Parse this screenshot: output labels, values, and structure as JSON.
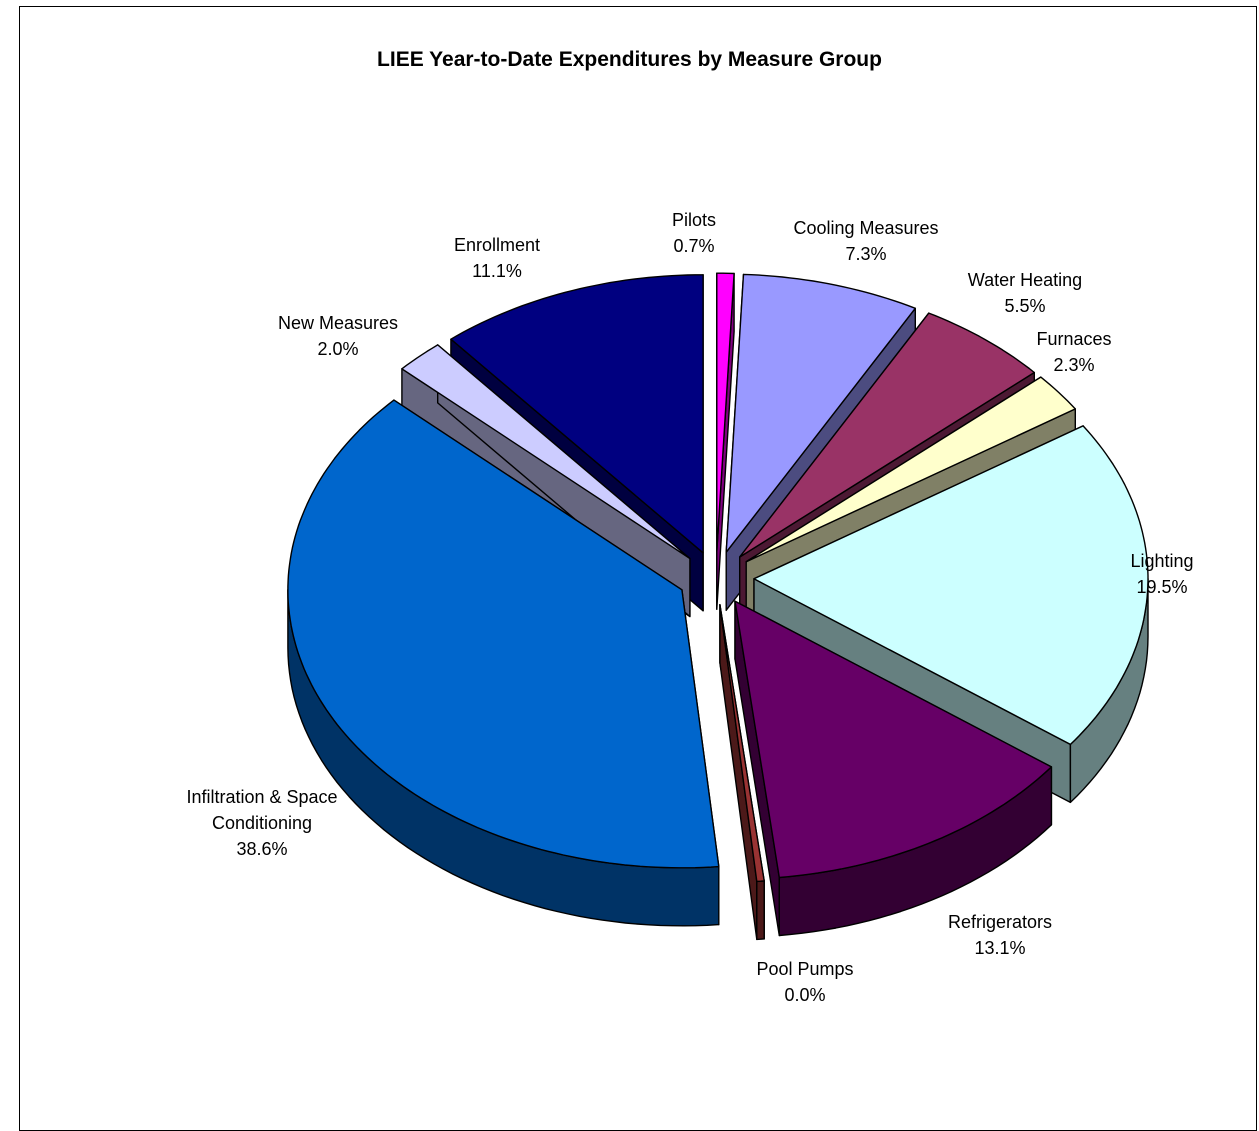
{
  "chart_data": {
    "type": "pie",
    "title": "LIEE Year-to-Date Expenditures by Measure Group",
    "slices": [
      {
        "name": "Pilots",
        "value": 0.7,
        "label_lines": [
          "Pilots",
          "0.7%"
        ],
        "top_color": "#ff00ff",
        "side_color": "#800080"
      },
      {
        "name": "Cooling Measures",
        "value": 7.3,
        "label_lines": [
          "Cooling Measures",
          "7.3%"
        ],
        "top_color": "#9999ff",
        "side_color": "#4c4c80"
      },
      {
        "name": "Water Heating",
        "value": 5.5,
        "label_lines": [
          "Water Heating",
          "5.5%"
        ],
        "top_color": "#993366",
        "side_color": "#4c1933"
      },
      {
        "name": "Furnaces",
        "value": 2.3,
        "label_lines": [
          "Furnaces",
          "2.3%"
        ],
        "top_color": "#ffffcc",
        "side_color": "#808066"
      },
      {
        "name": "Lighting",
        "value": 19.5,
        "label_lines": [
          "Lighting",
          "19.5%"
        ],
        "top_color": "#ccffff",
        "side_color": "#668080"
      },
      {
        "name": "Refrigerators",
        "value": 13.1,
        "label_lines": [
          "Refrigerators",
          "13.1%"
        ],
        "top_color": "#660066",
        "side_color": "#330033"
      },
      {
        "name": "Pool Pumps",
        "value": 0.0,
        "label_lines": [
          "Pool Pumps",
          "0.0%"
        ],
        "top_color": "#993333",
        "side_color": "#4c1919"
      },
      {
        "name": "Infiltration & Space Conditioning",
        "value": 38.6,
        "label_lines": [
          "Infiltration & Space",
          "Conditioning",
          "38.6%"
        ],
        "top_color": "#0066cc",
        "side_color": "#003366"
      },
      {
        "name": "New Measures",
        "value": 2.0,
        "label_lines": [
          "New Measures",
          "2.0%"
        ],
        "top_color": "#ccccff",
        "side_color": "#666680"
      },
      {
        "name": "Enrollment",
        "value": 11.1,
        "label_lines": [
          "Enrollment",
          "11.1%"
        ],
        "top_color": "#000080",
        "side_color": "#000040"
      }
    ]
  }
}
